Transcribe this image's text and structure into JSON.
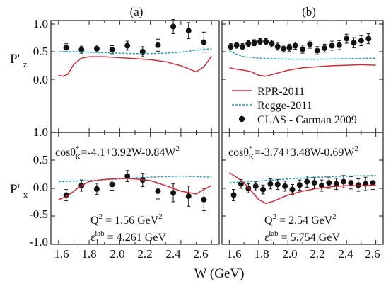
{
  "figure": {
    "xlabel": "W (GeV)",
    "ylabel_top": "P'z",
    "ylabel_bottom": "P'x",
    "top_yticks": [
      "0.0",
      "0.5",
      "1.0"
    ],
    "bottom_yticks": [
      "-1.0",
      "-0.5",
      "0.0",
      "0.5",
      "1.0"
    ],
    "xticks": [
      "1.6",
      "1.8",
      "2.0",
      "2.2",
      "2.4",
      "2.6"
    ]
  },
  "legend": {
    "entries": [
      {
        "label": "RPR-2011",
        "style": "solid",
        "color": "#d62a3b"
      },
      {
        "label": "Regge-2011",
        "style": "dashed",
        "color": "#1aa0b4"
      },
      {
        "label": "CLAS - Carman 2009",
        "style": "marker",
        "color": "#111111"
      }
    ]
  },
  "panels": {
    "a": {
      "label": "(a)",
      "formula_main": "cosθ",
      "formula_sup": "*",
      "formula_sub": "K",
      "formula_rest": "=-4.1+3.92W-0.84W",
      "formula_exp": "2",
      "q2_main": "Q",
      "q2_exp": "2",
      "q2_rest": " = 1.56 GeV",
      "q2_unit_exp": "2",
      "e_main": "ε",
      "e_sub": "1",
      "e_sup": "lab",
      "e_rest": " = 4.261 GeV"
    },
    "b": {
      "label": "(b)",
      "formula_main": "cosθ",
      "formula_sup": "*",
      "formula_sub": "K",
      "formula_rest": "=-3.74+3.48W-0.69W",
      "formula_exp": "2",
      "q2_main": "Q",
      "q2_exp": "2",
      "q2_rest": " = 2.54 GeV",
      "q2_unit_exp": "2",
      "e_main": "ε",
      "e_sub": "1",
      "e_sup": "lab",
      "e_rest": " = 5.754 GeV"
    }
  },
  "colors": {
    "rpr": "#d62a3b",
    "regge": "#1aa0b4",
    "data": "#111111"
  },
  "chart_data": [
    {
      "id": "a_z",
      "type": "scatter",
      "xlim": [
        1.55,
        2.65
      ],
      "ylim": [
        -0.05,
        1.05
      ],
      "series": [
        {
          "name": "CLAS - Carman 2009",
          "kind": "points",
          "x": [
            1.65,
            1.75,
            1.85,
            1.95,
            2.05,
            2.15,
            2.25,
            2.35,
            2.45,
            2.55
          ],
          "y": [
            0.58,
            0.54,
            0.56,
            0.54,
            0.62,
            0.5,
            0.63,
            1.0,
            0.92,
            0.69
          ],
          "err": [
            0.08,
            0.07,
            0.07,
            0.08,
            0.09,
            0.1,
            0.12,
            0.14,
            0.16,
            0.2
          ]
        },
        {
          "name": "Regge-2011",
          "kind": "dashed",
          "x": [
            1.6,
            1.7,
            1.8,
            1.9,
            2.0,
            2.1,
            2.2,
            2.3,
            2.4,
            2.5,
            2.6
          ],
          "y": [
            0.5,
            0.5,
            0.49,
            0.48,
            0.47,
            0.46,
            0.46,
            0.47,
            0.49,
            0.53,
            0.56
          ]
        },
        {
          "name": "RPR-2011",
          "kind": "solid",
          "x": [
            1.6,
            1.63,
            1.66,
            1.7,
            1.75,
            1.8,
            1.9,
            2.0,
            2.1,
            2.2,
            2.3,
            2.4,
            2.45,
            2.5,
            2.55,
            2.6
          ],
          "y": [
            0.03,
            0.01,
            0.05,
            0.25,
            0.37,
            0.4,
            0.4,
            0.38,
            0.36,
            0.34,
            0.3,
            0.22,
            0.16,
            0.1,
            0.2,
            0.41
          ]
        }
      ]
    },
    {
      "id": "b_z",
      "type": "scatter",
      "xlim": [
        1.55,
        2.65
      ],
      "ylim": [
        -0.05,
        1.05
      ],
      "series": [
        {
          "name": "CLAS - Carman 2009",
          "kind": "points",
          "x": [
            1.61,
            1.65,
            1.69,
            1.73,
            1.77,
            1.81,
            1.85,
            1.89,
            1.93,
            1.97,
            2.01,
            2.05,
            2.1,
            2.15,
            2.2,
            2.25,
            2.3,
            2.35,
            2.4,
            2.45,
            2.5,
            2.55
          ],
          "y": [
            0.6,
            0.63,
            0.6,
            0.66,
            0.68,
            0.7,
            0.7,
            0.66,
            0.6,
            0.56,
            0.58,
            0.62,
            0.55,
            0.65,
            0.52,
            0.57,
            0.62,
            0.63,
            0.76,
            0.68,
            0.72,
            0.76
          ],
          "err": [
            0.06,
            0.06,
            0.06,
            0.06,
            0.06,
            0.06,
            0.06,
            0.07,
            0.07,
            0.07,
            0.07,
            0.07,
            0.08,
            0.08,
            0.08,
            0.08,
            0.09,
            0.09,
            0.09,
            0.1,
            0.1,
            0.1
          ]
        },
        {
          "name": "Regge-2011",
          "kind": "dashed",
          "x": [
            1.6,
            1.65,
            1.7,
            1.8,
            1.9,
            2.0,
            2.2,
            2.4,
            2.6
          ],
          "y": [
            0.52,
            0.45,
            0.4,
            0.37,
            0.36,
            0.35,
            0.35,
            0.36,
            0.37
          ]
        },
        {
          "name": "RPR-2011",
          "kind": "solid",
          "x": [
            1.6,
            1.65,
            1.7,
            1.75,
            1.8,
            1.85,
            1.9,
            2.0,
            2.1,
            2.2,
            2.3,
            2.4,
            2.5,
            2.6
          ],
          "y": [
            0.18,
            0.15,
            0.13,
            0.1,
            0.03,
            0.01,
            0.05,
            0.13,
            0.18,
            0.2,
            0.22,
            0.23,
            0.24,
            0.23
          ]
        }
      ]
    },
    {
      "id": "a_x",
      "type": "scatter",
      "xlim": [
        1.55,
        2.65
      ],
      "ylim": [
        -1.0,
        1.0
      ],
      "series": [
        {
          "name": "CLAS - Carman 2009",
          "kind": "points",
          "x": [
            1.65,
            1.75,
            1.85,
            1.95,
            2.05,
            2.15,
            2.25,
            2.35,
            2.45,
            2.55
          ],
          "y": [
            -0.12,
            0.05,
            -0.01,
            0.07,
            0.22,
            0.15,
            -0.05,
            -0.08,
            -0.14,
            -0.2
          ],
          "err": [
            0.1,
            0.1,
            0.1,
            0.1,
            0.1,
            0.12,
            0.14,
            0.16,
            0.18,
            0.2
          ]
        },
        {
          "name": "Regge-2011",
          "kind": "dashed",
          "x": [
            1.6,
            1.8,
            2.0,
            2.2,
            2.4,
            2.6
          ],
          "y": [
            0.12,
            0.14,
            0.17,
            0.2,
            0.22,
            0.2
          ]
        },
        {
          "name": "RPR-2011",
          "kind": "solid",
          "x": [
            1.6,
            1.65,
            1.7,
            1.75,
            1.8,
            1.9,
            2.0,
            2.1,
            2.2,
            2.3,
            2.4,
            2.5,
            2.55,
            2.6
          ],
          "y": [
            -0.2,
            -0.15,
            -0.05,
            0.05,
            0.12,
            0.16,
            0.18,
            0.17,
            0.14,
            0.05,
            -0.05,
            -0.1,
            -0.02,
            0.05
          ]
        }
      ]
    },
    {
      "id": "b_x",
      "type": "scatter",
      "xlim": [
        1.55,
        2.65
      ],
      "ylim": [
        -1.0,
        1.0
      ],
      "series": [
        {
          "name": "CLAS - Carman 2009",
          "kind": "points",
          "x": [
            1.63,
            1.68,
            1.73,
            1.78,
            1.83,
            1.88,
            1.93,
            1.98,
            2.03,
            2.08,
            2.13,
            2.18,
            2.23,
            2.28,
            2.33,
            2.38,
            2.43,
            2.48,
            2.53,
            2.58
          ],
          "y": [
            -0.12,
            0.08,
            0.0,
            0.04,
            -0.02,
            0.08,
            0.07,
            0.04,
            -0.02,
            0.06,
            0.12,
            0.1,
            0.05,
            0.1,
            0.08,
            0.12,
            0.1,
            0.06,
            0.08,
            0.1
          ],
          "err": [
            0.1,
            0.08,
            0.08,
            0.08,
            0.08,
            0.09,
            0.09,
            0.09,
            0.09,
            0.09,
            0.1,
            0.1,
            0.1,
            0.1,
            0.1,
            0.11,
            0.11,
            0.11,
            0.12,
            0.12
          ]
        },
        {
          "name": "Regge-2011",
          "kind": "dashed",
          "x": [
            1.6,
            1.8,
            2.0,
            2.2,
            2.4,
            2.6
          ],
          "y": [
            0.1,
            0.13,
            0.17,
            0.2,
            0.22,
            0.23
          ]
        },
        {
          "name": "RPR-2011",
          "kind": "solid",
          "x": [
            1.6,
            1.65,
            1.7,
            1.75,
            1.8,
            1.85,
            1.9,
            2.0,
            2.1,
            2.2,
            2.3,
            2.4,
            2.5,
            2.6
          ],
          "y": [
            0.28,
            0.2,
            0.1,
            -0.05,
            -0.2,
            -0.27,
            -0.23,
            -0.12,
            -0.05,
            0.0,
            0.03,
            0.05,
            0.05,
            0.06
          ]
        }
      ]
    }
  ]
}
